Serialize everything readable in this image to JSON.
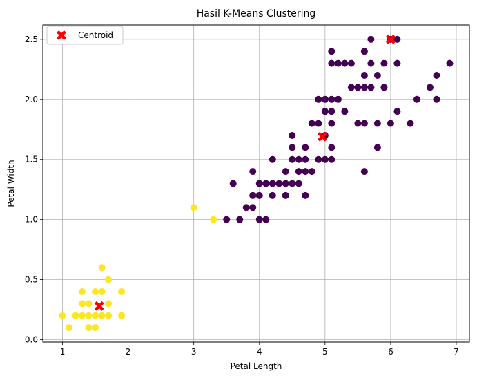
{
  "chart_data": {
    "type": "scatter",
    "title": "Hasil K-Means Clustering",
    "xlabel": "Petal Length",
    "ylabel": "Petal Width",
    "xlim": [
      0.7,
      7.2
    ],
    "ylim": [
      -0.02,
      2.62
    ],
    "xticks": [
      1,
      2,
      3,
      4,
      5,
      6,
      7
    ],
    "yticks": [
      0.0,
      0.5,
      1.0,
      1.5,
      2.0,
      2.5
    ],
    "xtick_labels": [
      "1",
      "2",
      "3",
      "4",
      "5",
      "6",
      "7"
    ],
    "ytick_labels": [
      "0.0",
      "0.5",
      "1.0",
      "1.5",
      "2.0",
      "2.5"
    ],
    "grid": true,
    "legend": {
      "position": "top-left",
      "entries": [
        "Centroid"
      ]
    },
    "colors": {
      "cluster_purple": "#440154",
      "cluster_yellow": "#fde725",
      "centroid": "#ff0000",
      "grid": "#b0b0b0"
    },
    "series": [
      {
        "color": "#fde725",
        "points": [
          [
            1.0,
            0.2
          ],
          [
            1.1,
            0.1
          ],
          [
            1.2,
            0.2
          ],
          [
            1.3,
            0.2
          ],
          [
            1.3,
            0.3
          ],
          [
            1.3,
            0.4
          ],
          [
            1.4,
            0.1
          ],
          [
            1.4,
            0.2
          ],
          [
            1.4,
            0.3
          ],
          [
            1.5,
            0.1
          ],
          [
            1.5,
            0.2
          ],
          [
            1.5,
            0.4
          ],
          [
            1.6,
            0.2
          ],
          [
            1.6,
            0.4
          ],
          [
            1.6,
            0.6
          ],
          [
            1.7,
            0.2
          ],
          [
            1.7,
            0.3
          ],
          [
            1.7,
            0.5
          ],
          [
            1.9,
            0.2
          ],
          [
            1.9,
            0.4
          ],
          [
            3.0,
            1.1
          ],
          [
            3.3,
            1.0
          ]
        ]
      },
      {
        "color": "#440154",
        "points": [
          [
            3.5,
            1.0
          ],
          [
            3.6,
            1.3
          ],
          [
            3.7,
            1.0
          ],
          [
            3.8,
            1.1
          ],
          [
            3.9,
            1.1
          ],
          [
            3.9,
            1.2
          ],
          [
            3.9,
            1.4
          ],
          [
            4.0,
            1.0
          ],
          [
            4.0,
            1.2
          ],
          [
            4.0,
            1.3
          ],
          [
            4.1,
            1.0
          ],
          [
            4.1,
            1.3
          ],
          [
            4.2,
            1.2
          ],
          [
            4.2,
            1.3
          ],
          [
            4.2,
            1.5
          ],
          [
            4.3,
            1.3
          ],
          [
            4.4,
            1.2
          ],
          [
            4.4,
            1.3
          ],
          [
            4.4,
            1.4
          ],
          [
            4.5,
            1.3
          ],
          [
            4.5,
            1.5
          ],
          [
            4.5,
            1.6
          ],
          [
            4.5,
            1.7
          ],
          [
            4.6,
            1.3
          ],
          [
            4.6,
            1.4
          ],
          [
            4.6,
            1.5
          ],
          [
            4.7,
            1.2
          ],
          [
            4.7,
            1.4
          ],
          [
            4.7,
            1.5
          ],
          [
            4.7,
            1.6
          ],
          [
            4.8,
            1.4
          ],
          [
            4.8,
            1.8
          ],
          [
            4.9,
            1.5
          ],
          [
            4.9,
            1.8
          ],
          [
            4.9,
            2.0
          ],
          [
            5.0,
            1.5
          ],
          [
            5.0,
            1.7
          ],
          [
            5.0,
            1.9
          ],
          [
            5.0,
            2.0
          ],
          [
            5.1,
            1.5
          ],
          [
            5.1,
            1.6
          ],
          [
            5.1,
            1.8
          ],
          [
            5.1,
            1.9
          ],
          [
            5.1,
            2.0
          ],
          [
            5.1,
            2.3
          ],
          [
            5.1,
            2.4
          ],
          [
            5.2,
            2.0
          ],
          [
            5.2,
            2.3
          ],
          [
            5.3,
            1.9
          ],
          [
            5.3,
            2.3
          ],
          [
            5.4,
            2.1
          ],
          [
            5.4,
            2.3
          ],
          [
            5.5,
            1.8
          ],
          [
            5.5,
            2.1
          ],
          [
            5.6,
            1.4
          ],
          [
            5.6,
            1.8
          ],
          [
            5.6,
            2.1
          ],
          [
            5.6,
            2.2
          ],
          [
            5.6,
            2.4
          ],
          [
            5.7,
            2.1
          ],
          [
            5.7,
            2.3
          ],
          [
            5.7,
            2.5
          ],
          [
            5.8,
            1.6
          ],
          [
            5.8,
            1.8
          ],
          [
            5.8,
            2.2
          ],
          [
            5.9,
            2.1
          ],
          [
            5.9,
            2.3
          ],
          [
            6.0,
            1.8
          ],
          [
            6.0,
            2.5
          ],
          [
            6.1,
            1.9
          ],
          [
            6.1,
            2.3
          ],
          [
            6.1,
            2.5
          ],
          [
            6.3,
            1.8
          ],
          [
            6.4,
            2.0
          ],
          [
            6.6,
            2.1
          ],
          [
            6.7,
            2.0
          ],
          [
            6.7,
            2.2
          ],
          [
            6.9,
            2.3
          ]
        ]
      },
      {
        "name": "Centroid",
        "color": "#ff0000",
        "points": [
          [
            1.56,
            0.28
          ],
          [
            4.96,
            1.69
          ],
          [
            6.0,
            2.5
          ]
        ]
      }
    ]
  }
}
